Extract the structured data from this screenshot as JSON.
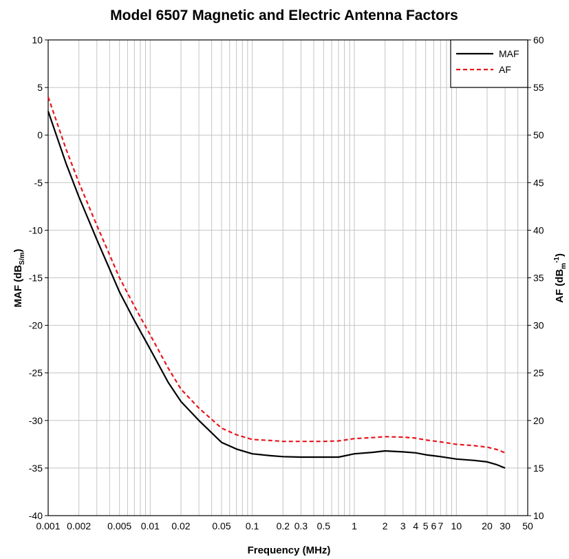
{
  "chart_data": {
    "type": "line",
    "title": "Model 6507 Magnetic and Electric Antenna Factors",
    "xlabel": "Frequency (MHz)",
    "x_scale": "log",
    "xlim": [
      0.001,
      50
    ],
    "x_ticks": [
      {
        "v": 0.001,
        "t": "0.001"
      },
      {
        "v": 0.002,
        "t": "0.002"
      },
      {
        "v": 0.005,
        "t": "0.005"
      },
      {
        "v": 0.01,
        "t": "0.01"
      },
      {
        "v": 0.02,
        "t": "0.02"
      },
      {
        "v": 0.05,
        "t": "0.05"
      },
      {
        "v": 0.1,
        "t": "0.1"
      },
      {
        "v": 0.2,
        "t": "0.2"
      },
      {
        "v": 0.3,
        "t": "0.3"
      },
      {
        "v": 0.5,
        "t": "0.5"
      },
      {
        "v": 1,
        "t": "1"
      },
      {
        "v": 2,
        "t": "2"
      },
      {
        "v": 3,
        "t": "3"
      },
      {
        "v": 4,
        "t": "4"
      },
      {
        "v": 5,
        "t": "5"
      },
      {
        "v": 6,
        "t": "6"
      },
      {
        "v": 7,
        "t": "7"
      },
      {
        "v": 10,
        "t": "10"
      },
      {
        "v": 20,
        "t": "20"
      },
      {
        "v": 30,
        "t": "30"
      },
      {
        "v": 50,
        "t": "50"
      }
    ],
    "y_left": {
      "label": "MAF (dB",
      "label_sub": "S/m",
      "label_end": ")",
      "ylim": [
        -40,
        10
      ],
      "ticks": [
        10,
        5,
        0,
        -5,
        -10,
        -15,
        -20,
        -25,
        -30,
        -35,
        -40
      ]
    },
    "y_right": {
      "label": "AF (dB",
      "label_sub": "m",
      "label_sup": "-1",
      "label_end": ")",
      "ylim": [
        10,
        60
      ],
      "ticks": [
        60,
        55,
        50,
        45,
        40,
        35,
        30,
        25,
        20,
        15,
        10
      ]
    },
    "grid": true,
    "legend_position": "top-right",
    "series": [
      {
        "name": "MAF",
        "axis": "left",
        "color": "#000000",
        "style": "solid",
        "x": [
          0.001,
          0.0015,
          0.002,
          0.003,
          0.005,
          0.007,
          0.01,
          0.015,
          0.02,
          0.03,
          0.05,
          0.07,
          0.1,
          0.15,
          0.2,
          0.3,
          0.5,
          0.7,
          1,
          1.5,
          2,
          3,
          4,
          5,
          7,
          10,
          15,
          20,
          25,
          30
        ],
        "y": [
          2.5,
          -3,
          -6.5,
          -11,
          -16.5,
          -19.5,
          -22.5,
          -26,
          -28,
          -30,
          -32.3,
          -33,
          -33.5,
          -33.7,
          -33.8,
          -33.85,
          -33.85,
          -33.85,
          -33.5,
          -33.35,
          -33.2,
          -33.3,
          -33.4,
          -33.6,
          -33.8,
          -34.05,
          -34.2,
          -34.35,
          -34.65,
          -35
        ]
      },
      {
        "name": "AF",
        "axis": "right",
        "color": "#e8141b",
        "style": "dashed",
        "x": [
          0.001,
          0.0015,
          0.002,
          0.003,
          0.005,
          0.007,
          0.01,
          0.015,
          0.02,
          0.03,
          0.05,
          0.07,
          0.1,
          0.15,
          0.2,
          0.3,
          0.5,
          0.7,
          1,
          1.5,
          2,
          3,
          4,
          5,
          7,
          10,
          15,
          20,
          25,
          30
        ],
        "y": [
          54,
          48.5,
          45,
          40.5,
          35,
          32,
          29,
          25.5,
          23.3,
          21.3,
          19.2,
          18.5,
          18,
          17.9,
          17.8,
          17.8,
          17.8,
          17.85,
          18.1,
          18.2,
          18.3,
          18.25,
          18.15,
          17.95,
          17.75,
          17.5,
          17.35,
          17.2,
          16.95,
          16.6
        ]
      }
    ]
  }
}
